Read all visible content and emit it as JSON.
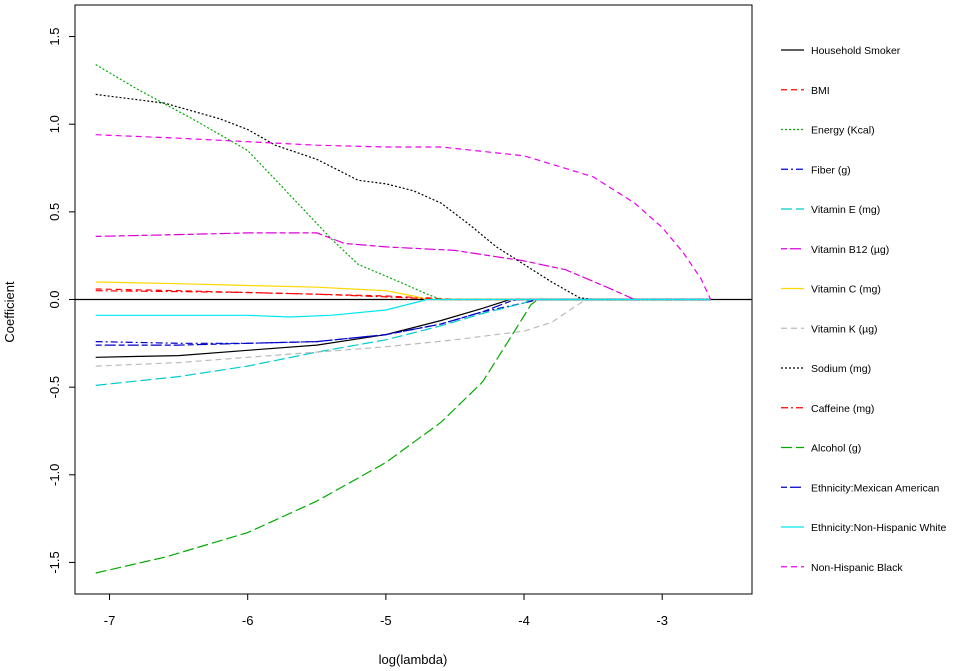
{
  "chart_data": {
    "type": "line",
    "title": "",
    "xlabel": "log(lambda)",
    "ylabel": "Coefficient",
    "xlim": [
      -7.25,
      -2.35
    ],
    "ylim": [
      -1.68,
      1.68
    ],
    "x_ticks": [
      -7,
      -6,
      -5,
      -4,
      -3
    ],
    "x_tick_labels": [
      "-7",
      "-6",
      "-5",
      "-4",
      "-3"
    ],
    "y_ticks": [
      -1.5,
      -1.0,
      -0.5,
      0.0,
      0.5,
      1.0,
      1.5
    ],
    "y_tick_labels": [
      "-1.5",
      "-1.0",
      "-0.5",
      "0.0",
      "0.5",
      "1.0",
      "1.5"
    ],
    "zero_line": true,
    "grid": false,
    "legend_position": "right",
    "series": [
      {
        "name": "Household Smoker",
        "color": "#000000",
        "dash": "solid",
        "points": [
          [
            -7.1,
            -0.33
          ],
          [
            -6.5,
            -0.32
          ],
          [
            -6.0,
            -0.29
          ],
          [
            -5.5,
            -0.26
          ],
          [
            -5.0,
            -0.2
          ],
          [
            -4.6,
            -0.12
          ],
          [
            -4.3,
            -0.05
          ],
          [
            -4.1,
            0.0
          ],
          [
            -3.5,
            0.0
          ],
          [
            -2.65,
            0.0
          ]
        ]
      },
      {
        "name": "BMI",
        "color": "#ff0000",
        "dash": "dashed",
        "points": [
          [
            -7.1,
            0.06
          ],
          [
            -6.5,
            0.05
          ],
          [
            -6.0,
            0.04
          ],
          [
            -5.5,
            0.03
          ],
          [
            -5.0,
            0.02
          ],
          [
            -4.6,
            0.005
          ],
          [
            -4.5,
            0.0
          ],
          [
            -2.65,
            0.0
          ]
        ]
      },
      {
        "name": "Energy (Kcal)",
        "color": "#00aa00",
        "dash": "dotted",
        "points": [
          [
            -7.1,
            1.34
          ],
          [
            -6.8,
            1.2
          ],
          [
            -6.4,
            1.03
          ],
          [
            -6.0,
            0.85
          ],
          [
            -5.7,
            0.6
          ],
          [
            -5.4,
            0.35
          ],
          [
            -5.2,
            0.2
          ],
          [
            -4.9,
            0.1
          ],
          [
            -4.7,
            0.03
          ],
          [
            -4.6,
            0.0
          ],
          [
            -2.65,
            0.0
          ]
        ]
      },
      {
        "name": "Fiber (g)",
        "color": "#0000cc",
        "dash": "dashdot",
        "points": [
          [
            -7.1,
            -0.24
          ],
          [
            -6.5,
            -0.25
          ],
          [
            -6.0,
            -0.25
          ],
          [
            -5.5,
            -0.24
          ],
          [
            -5.0,
            -0.2
          ],
          [
            -4.6,
            -0.14
          ],
          [
            -4.3,
            -0.07
          ],
          [
            -4.0,
            -0.02
          ],
          [
            -3.9,
            0.0
          ],
          [
            -2.65,
            0.0
          ]
        ]
      },
      {
        "name": "Vitamin E (mg)",
        "color": "#00cccc",
        "dash": "longdash",
        "points": [
          [
            -7.1,
            -0.49
          ],
          [
            -6.5,
            -0.44
          ],
          [
            -6.0,
            -0.38
          ],
          [
            -5.5,
            -0.3
          ],
          [
            -5.0,
            -0.23
          ],
          [
            -4.6,
            -0.15
          ],
          [
            -4.3,
            -0.08
          ],
          [
            -4.0,
            -0.02
          ],
          [
            -3.95,
            0.0
          ],
          [
            -2.65,
            0.0
          ]
        ]
      },
      {
        "name": "Vitamin B12 (µg)",
        "color": "#dd00dd",
        "dash": "twodash",
        "points": [
          [
            -7.1,
            0.36
          ],
          [
            -6.5,
            0.37
          ],
          [
            -6.0,
            0.38
          ],
          [
            -5.5,
            0.38
          ],
          [
            -5.3,
            0.32
          ],
          [
            -5.0,
            0.3
          ],
          [
            -4.5,
            0.28
          ],
          [
            -4.0,
            0.22
          ],
          [
            -3.7,
            0.17
          ],
          [
            -3.4,
            0.07
          ],
          [
            -3.2,
            0.0
          ],
          [
            -2.65,
            0.0
          ]
        ]
      },
      {
        "name": "Vitamin C (mg)",
        "color": "#ffd700",
        "dash": "solid",
        "points": [
          [
            -7.1,
            0.1
          ],
          [
            -6.5,
            0.09
          ],
          [
            -6.0,
            0.08
          ],
          [
            -5.5,
            0.07
          ],
          [
            -5.0,
            0.05
          ],
          [
            -4.8,
            0.02
          ],
          [
            -4.7,
            0.0
          ],
          [
            -2.65,
            0.0
          ]
        ]
      },
      {
        "name": "Vitamin K (µg)",
        "color": "#bbbbbb",
        "dash": "dashed",
        "points": [
          [
            -7.1,
            -0.38
          ],
          [
            -6.5,
            -0.36
          ],
          [
            -6.0,
            -0.33
          ],
          [
            -5.5,
            -0.3
          ],
          [
            -5.0,
            -0.27
          ],
          [
            -4.5,
            -0.23
          ],
          [
            -4.0,
            -0.18
          ],
          [
            -3.8,
            -0.13
          ],
          [
            -3.65,
            -0.05
          ],
          [
            -3.55,
            0.0
          ],
          [
            -2.65,
            0.0
          ]
        ]
      },
      {
        "name": "Sodium (mg)",
        "color": "#000000",
        "dash": "dotted",
        "points": [
          [
            -7.1,
            1.17
          ],
          [
            -6.6,
            1.12
          ],
          [
            -6.2,
            1.03
          ],
          [
            -6.0,
            0.97
          ],
          [
            -5.8,
            0.88
          ],
          [
            -5.5,
            0.8
          ],
          [
            -5.2,
            0.68
          ],
          [
            -5.0,
            0.66
          ],
          [
            -4.8,
            0.62
          ],
          [
            -4.6,
            0.55
          ],
          [
            -4.4,
            0.43
          ],
          [
            -4.2,
            0.3
          ],
          [
            -4.0,
            0.2
          ],
          [
            -3.8,
            0.1
          ],
          [
            -3.6,
            0.01
          ],
          [
            -3.5,
            0.0
          ],
          [
            -2.65,
            0.0
          ]
        ]
      },
      {
        "name": "Caffeine (mg)",
        "color": "#ff0000",
        "dash": "dashdot",
        "points": [
          [
            -7.1,
            0.05
          ],
          [
            -6.5,
            0.045
          ],
          [
            -6.0,
            0.04
          ],
          [
            -5.5,
            0.03
          ],
          [
            -5.0,
            0.015
          ],
          [
            -4.7,
            0.005
          ],
          [
            -4.6,
            0.0
          ],
          [
            -2.65,
            0.0
          ]
        ]
      },
      {
        "name": "Alcohol (g)",
        "color": "#00aa00",
        "dash": "longdash",
        "points": [
          [
            -7.1,
            -1.56
          ],
          [
            -6.6,
            -1.47
          ],
          [
            -6.0,
            -1.33
          ],
          [
            -5.5,
            -1.15
          ],
          [
            -5.0,
            -0.93
          ],
          [
            -4.6,
            -0.7
          ],
          [
            -4.3,
            -0.47
          ],
          [
            -4.1,
            -0.22
          ],
          [
            -3.95,
            -0.03
          ],
          [
            -3.9,
            0.0
          ],
          [
            -2.65,
            0.0
          ]
        ]
      },
      {
        "name": "Ethnicity:Mexican American",
        "color": "#0000cc",
        "dash": "twodash",
        "points": [
          [
            -7.1,
            -0.26
          ],
          [
            -6.5,
            -0.26
          ],
          [
            -6.0,
            -0.25
          ],
          [
            -5.5,
            -0.24
          ],
          [
            -5.0,
            -0.2
          ],
          [
            -4.6,
            -0.14
          ],
          [
            -4.3,
            -0.07
          ],
          [
            -4.1,
            -0.01
          ],
          [
            -4.05,
            0.0
          ],
          [
            -2.65,
            0.0
          ]
        ]
      },
      {
        "name": "Ethnicity:Non-Hispanic White",
        "color": "#00e5ee",
        "dash": "solid",
        "points": [
          [
            -7.1,
            -0.09
          ],
          [
            -6.5,
            -0.09
          ],
          [
            -6.0,
            -0.09
          ],
          [
            -5.7,
            -0.1
          ],
          [
            -5.4,
            -0.09
          ],
          [
            -5.0,
            -0.06
          ],
          [
            -4.8,
            -0.02
          ],
          [
            -4.7,
            0.0
          ],
          [
            -2.65,
            0.0
          ]
        ]
      },
      {
        "name": "Non-Hispanic Black",
        "color": "#ee00ee",
        "dash": "dashed",
        "points": [
          [
            -7.1,
            0.94
          ],
          [
            -6.5,
            0.92
          ],
          [
            -6.0,
            0.9
          ],
          [
            -5.5,
            0.88
          ],
          [
            -5.0,
            0.87
          ],
          [
            -4.6,
            0.87
          ],
          [
            -4.0,
            0.82
          ],
          [
            -3.5,
            0.7
          ],
          [
            -3.2,
            0.55
          ],
          [
            -3.0,
            0.41
          ],
          [
            -2.85,
            0.27
          ],
          [
            -2.72,
            0.12
          ],
          [
            -2.65,
            0.0
          ]
        ]
      }
    ]
  }
}
